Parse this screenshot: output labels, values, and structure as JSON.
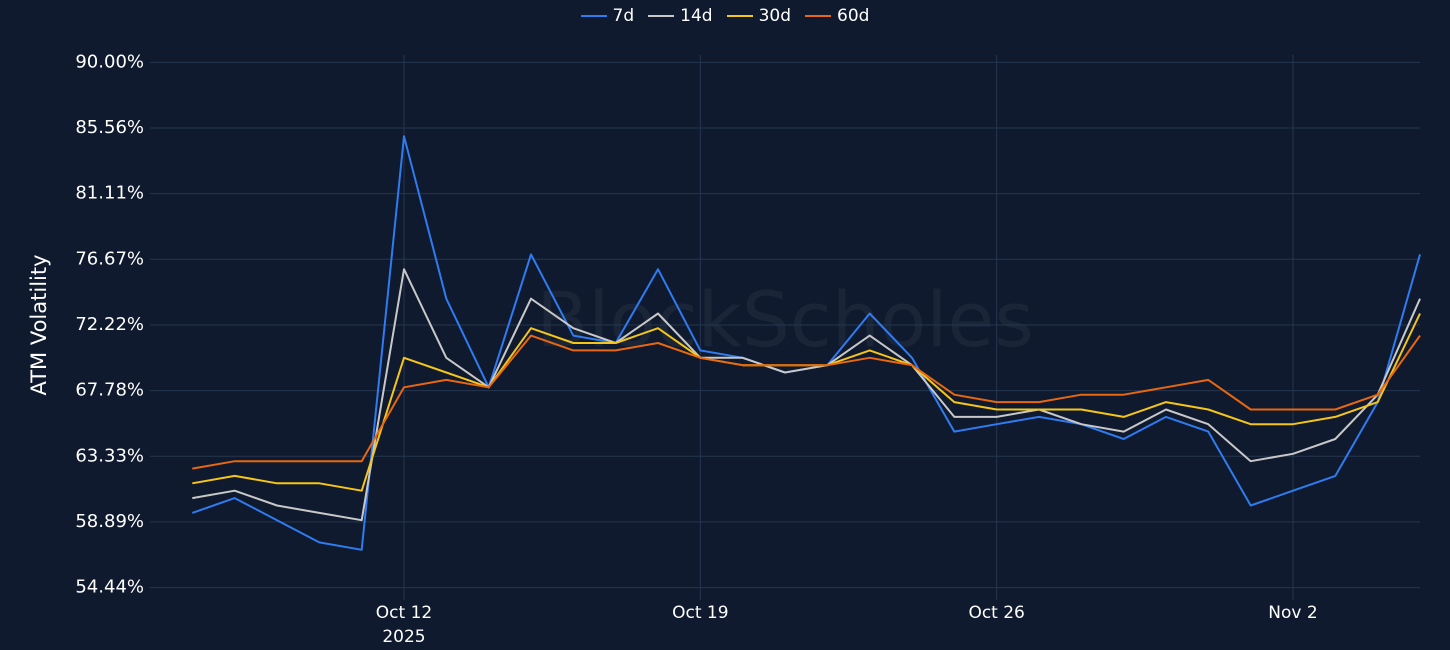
{
  "chart_data": {
    "type": "line",
    "watermark": "BlockScholes",
    "y_label": "ATM Volatility",
    "x": [
      "2025-10-07",
      "2025-10-08",
      "2025-10-09",
      "2025-10-10",
      "2025-10-11",
      "2025-10-12",
      "2025-10-13",
      "2025-10-14",
      "2025-10-15",
      "2025-10-16",
      "2025-10-17",
      "2025-10-18",
      "2025-10-19",
      "2025-10-20",
      "2025-10-21",
      "2025-10-22",
      "2025-10-23",
      "2025-10-24",
      "2025-10-25",
      "2025-10-26",
      "2025-10-27",
      "2025-10-28",
      "2025-10-29",
      "2025-10-30",
      "2025-10-31",
      "2025-11-01",
      "2025-11-02",
      "2025-11-03",
      "2025-11-04",
      "2025-11-05"
    ],
    "series": [
      {
        "name": "7d",
        "color": "#2f7bf0",
        "values": [
          59.5,
          60.5,
          59,
          57.5,
          57,
          85,
          74,
          68,
          77,
          71.5,
          71,
          76,
          70.5,
          70,
          69,
          69.5,
          73,
          70,
          65,
          65.5,
          66,
          65.5,
          64.5,
          66,
          65,
          60,
          61,
          62,
          67,
          77
        ]
      },
      {
        "name": "14d",
        "color": "#c8c8c8",
        "values": [
          60.5,
          61,
          60,
          59.5,
          59,
          76,
          70,
          68,
          74,
          72,
          71,
          73,
          70,
          70,
          69,
          69.5,
          71.5,
          69.5,
          66,
          66,
          66.5,
          65.5,
          65,
          66.5,
          65.5,
          63,
          63.5,
          64.5,
          67.5,
          74
        ]
      },
      {
        "name": "30d",
        "color": "#f5c518",
        "values": [
          61.5,
          62,
          61.5,
          61.5,
          61,
          70,
          69,
          68,
          72,
          71,
          71,
          72,
          70,
          69.5,
          69.5,
          69.5,
          70.5,
          69.5,
          67,
          66.5,
          66.5,
          66.5,
          66,
          67,
          66.5,
          65.5,
          65.5,
          66,
          67,
          73
        ]
      },
      {
        "name": "60d",
        "color": "#e8670f",
        "values": [
          62.5,
          63,
          63,
          63,
          63,
          68,
          68.5,
          68,
          71.5,
          70.5,
          70.5,
          71,
          70,
          69.5,
          69.5,
          69.5,
          70,
          69.5,
          67.5,
          67,
          67,
          67.5,
          67.5,
          68,
          68.5,
          66.5,
          66.5,
          66.5,
          67.5,
          71.5
        ]
      }
    ],
    "xlim": [
      "2025-10-06",
      "2025-11-05"
    ],
    "xticks": [
      {
        "value": "2025-10-12",
        "label": "Oct 12\n2025"
      },
      {
        "value": "2025-10-19",
        "label": "Oct 19"
      },
      {
        "value": "2025-10-26",
        "label": "Oct 26"
      },
      {
        "value": "2025-11-02",
        "label": "Nov 2"
      }
    ],
    "ylim": [
      53.6,
      90.5
    ],
    "yticks": [
      {
        "value": 54.44,
        "label": "54.44%"
      },
      {
        "value": 58.89,
        "label": "58.89%"
      },
      {
        "value": 63.33,
        "label": "63.33%"
      },
      {
        "value": 67.78,
        "label": "67.78%"
      },
      {
        "value": 72.22,
        "label": "72.22%"
      },
      {
        "value": 76.67,
        "label": "76.67%"
      },
      {
        "value": 81.11,
        "label": "81.11%"
      },
      {
        "value": 85.56,
        "label": "85.56%"
      },
      {
        "value": 90,
        "label": "90.00%"
      }
    ],
    "grid": true,
    "legend": "top"
  }
}
